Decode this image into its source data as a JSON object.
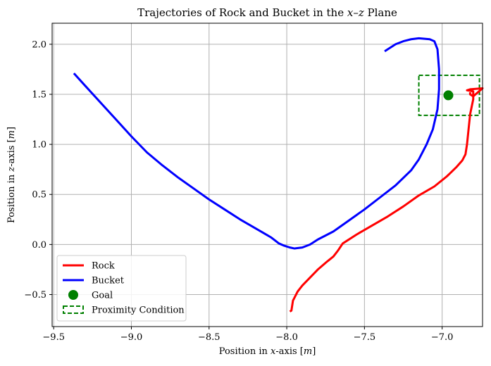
{
  "chart_data": {
    "type": "line",
    "title_parts": [
      "Trajectories of Rock and Bucket in the ",
      "x",
      "–",
      "z",
      " Plane"
    ],
    "xlabel_parts": [
      "Position in ",
      "x",
      "-axis [",
      "m",
      "]"
    ],
    "ylabel_parts": [
      "Position in ",
      "z",
      "-axis [",
      "m",
      "]"
    ],
    "xlim": [
      -9.51,
      -6.74
    ],
    "ylim": [
      -0.82,
      2.21
    ],
    "xticks": [
      -9.5,
      -9.0,
      -8.5,
      -8.0,
      -7.5,
      -7.0
    ],
    "xtick_labels": [
      "−9.5",
      "−9.0",
      "−8.5",
      "−8.0",
      "−7.5",
      "−7.0"
    ],
    "yticks": [
      -0.5,
      0.0,
      0.5,
      1.0,
      1.5,
      2.0
    ],
    "ytick_labels": [
      "−0.5",
      "0.0",
      "0.5",
      "1.0",
      "1.5",
      "2.0"
    ],
    "grid": true,
    "legend_position": "lower-left",
    "series": [
      {
        "name": "Rock",
        "color": "#ff0000",
        "points": [
          [
            -7.98,
            -0.67
          ],
          [
            -7.97,
            -0.66
          ],
          [
            -7.96,
            -0.56
          ],
          [
            -7.93,
            -0.47
          ],
          [
            -7.9,
            -0.41
          ],
          [
            -7.85,
            -0.33
          ],
          [
            -7.8,
            -0.25
          ],
          [
            -7.74,
            -0.17
          ],
          [
            -7.7,
            -0.12
          ],
          [
            -7.67,
            -0.06
          ],
          [
            -7.64,
            0.01
          ],
          [
            -7.55,
            0.1
          ],
          [
            -7.45,
            0.19
          ],
          [
            -7.35,
            0.28
          ],
          [
            -7.25,
            0.38
          ],
          [
            -7.15,
            0.49
          ],
          [
            -7.05,
            0.58
          ],
          [
            -6.97,
            0.68
          ],
          [
            -6.91,
            0.77
          ],
          [
            -6.87,
            0.84
          ],
          [
            -6.85,
            0.9
          ],
          [
            -6.84,
            1.0
          ],
          [
            -6.83,
            1.15
          ],
          [
            -6.82,
            1.3
          ],
          [
            -6.8,
            1.45
          ],
          [
            -6.8,
            1.53
          ],
          [
            -6.84,
            1.54
          ],
          [
            -6.82,
            1.55
          ],
          [
            -6.74,
            1.56
          ],
          [
            -6.77,
            1.52
          ],
          [
            -6.8,
            1.48
          ],
          [
            -6.82,
            1.5
          ],
          [
            -6.82,
            1.52
          ]
        ]
      },
      {
        "name": "Bucket",
        "color": "#0000ff",
        "points": [
          [
            -9.37,
            1.71
          ],
          [
            -9.3,
            1.59
          ],
          [
            -9.2,
            1.42
          ],
          [
            -9.1,
            1.25
          ],
          [
            -9.0,
            1.08
          ],
          [
            -8.9,
            0.92
          ],
          [
            -8.8,
            0.79
          ],
          [
            -8.7,
            0.67
          ],
          [
            -8.6,
            0.56
          ],
          [
            -8.5,
            0.45
          ],
          [
            -8.4,
            0.35
          ],
          [
            -8.3,
            0.25
          ],
          [
            -8.2,
            0.16
          ],
          [
            -8.1,
            0.07
          ],
          [
            -8.05,
            0.01
          ],
          [
            -8.02,
            -0.01
          ],
          [
            -7.98,
            -0.03
          ],
          [
            -7.95,
            -0.04
          ],
          [
            -7.9,
            -0.03
          ],
          [
            -7.85,
            0.0
          ],
          [
            -7.8,
            0.05
          ],
          [
            -7.7,
            0.13
          ],
          [
            -7.6,
            0.24
          ],
          [
            -7.5,
            0.35
          ],
          [
            -7.4,
            0.47
          ],
          [
            -7.3,
            0.59
          ],
          [
            -7.2,
            0.74
          ],
          [
            -7.15,
            0.85
          ],
          [
            -7.1,
            1.0
          ],
          [
            -7.06,
            1.15
          ],
          [
            -7.03,
            1.35
          ],
          [
            -7.02,
            1.55
          ],
          [
            -7.02,
            1.75
          ],
          [
            -7.03,
            1.95
          ],
          [
            -7.05,
            2.03
          ],
          [
            -7.08,
            2.05
          ],
          [
            -7.15,
            2.06
          ],
          [
            -7.2,
            2.05
          ],
          [
            -7.25,
            2.03
          ],
          [
            -7.3,
            2.0
          ],
          [
            -7.35,
            1.95
          ],
          [
            -7.37,
            1.93
          ]
        ]
      }
    ],
    "goal": {
      "name": "Goal",
      "x": -6.96,
      "y": 1.49,
      "color": "#008000"
    },
    "proximity_box": {
      "name": "Proximity Condition",
      "x0": -7.15,
      "x1": -6.76,
      "y0": 1.29,
      "y1": 1.69,
      "color": "#008000"
    }
  }
}
